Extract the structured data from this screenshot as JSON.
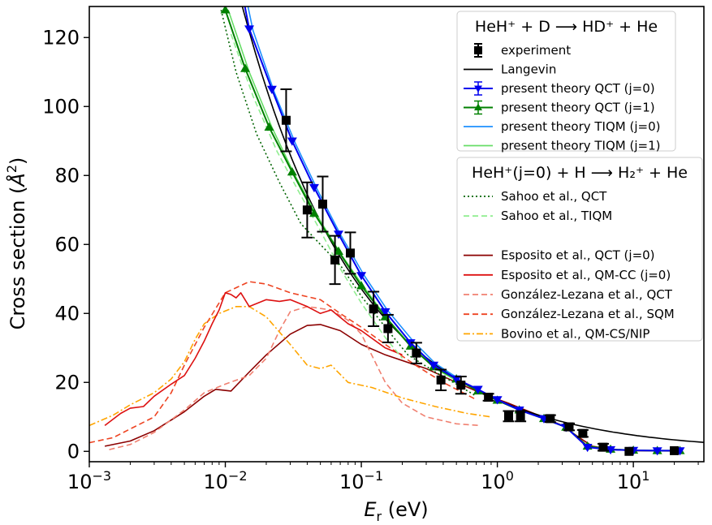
{
  "chart_data": {
    "type": "line",
    "xscale": "log",
    "xlim": [
      0.001,
      33
    ],
    "ylim": [
      -3,
      129
    ],
    "xlabel": "E_r (eV)",
    "xlabel_main": "E",
    "xlabel_sub": "r",
    "xlabel_unit": " (eV)",
    "ylabel": "Cross section (Å²)",
    "ylabel_main": "Cross section (",
    "ylabel_symbol": "Å",
    "ylabel_sup": "2",
    "ylabel_close": ")",
    "grid": false,
    "x_ticks": [
      {
        "value": 0.001,
        "base": "10",
        "exp": "−3"
      },
      {
        "value": 0.01,
        "base": "10",
        "exp": "−2"
      },
      {
        "value": 0.1,
        "base": "10",
        "exp": "−1"
      },
      {
        "value": 1,
        "base": "10",
        "exp": "0"
      },
      {
        "value": 10,
        "base": "10",
        "exp": "1"
      }
    ],
    "y_ticks": [
      0,
      20,
      40,
      60,
      80,
      100,
      120
    ],
    "legend_placement": "top-right",
    "legends": [
      {
        "title": "HeH⁺ + D ⟶ HD⁺ + He",
        "entries": [
          "experiment",
          "langevin",
          "qct_j0",
          "qct_j1",
          "tiqm_j0",
          "tiqm_j1"
        ]
      },
      {
        "title": "HeH⁺(j=0) + H ⟶ H₂⁺ + He",
        "entries": [
          "sahoo_qct",
          "sahoo_tiqm",
          null,
          "esposito_qct",
          "esposito_qmcc",
          "gonzalez_qct",
          "gonzalez_sqm",
          "bovino"
        ]
      }
    ],
    "series": [
      {
        "id": "experiment",
        "name": "experiment",
        "color": "#000000",
        "style": "markers",
        "marker": "square",
        "points": [
          [
            0.028,
            96,
            9
          ],
          [
            0.04,
            70,
            8
          ],
          [
            0.052,
            71.7,
            8
          ],
          [
            0.064,
            55.5,
            7
          ],
          [
            0.083,
            57.5,
            6
          ],
          [
            0.123,
            41.3,
            5
          ],
          [
            0.157,
            35.6,
            4
          ],
          [
            0.254,
            28.5,
            3
          ],
          [
            0.385,
            20.7,
            3
          ],
          [
            0.54,
            19.2,
            2.5
          ],
          [
            0.86,
            15.7,
            1
          ],
          [
            1.21,
            10.2,
            1.5
          ],
          [
            1.48,
            10.2,
            1.5
          ],
          [
            2.45,
            9.5,
            1
          ],
          [
            3.37,
            7.1,
            1
          ],
          [
            4.25,
            5.2,
            1
          ],
          [
            6.0,
            1.2,
            1
          ],
          [
            9.3,
            0,
            0.5
          ],
          [
            20,
            0.2,
            0.5
          ]
        ]
      },
      {
        "id": "langevin",
        "name": "Langevin",
        "color": "#000000",
        "style": "solid",
        "formula": "langevin",
        "coef": 14.9,
        "x_range": [
          0.009,
          33
        ]
      },
      {
        "id": "qct_j0",
        "name": "present theory QCT (j=0)",
        "color": "#0000ee",
        "style": "solid-markers",
        "marker": "triangle-down",
        "points": [
          [
            0.012,
            142
          ],
          [
            0.015,
            122.5
          ],
          [
            0.022,
            105
          ],
          [
            0.031,
            90
          ],
          [
            0.045,
            76.5
          ],
          [
            0.068,
            63
          ],
          [
            0.1,
            51
          ],
          [
            0.15,
            40.5
          ],
          [
            0.23,
            31.5
          ],
          [
            0.34,
            25
          ],
          [
            0.5,
            21
          ],
          [
            0.72,
            18
          ],
          [
            1.0,
            15
          ],
          [
            1.45,
            12
          ],
          [
            2.2,
            9.5
          ],
          [
            3.2,
            7
          ],
          [
            4.6,
            1.2
          ],
          [
            6.8,
            0.5
          ],
          [
            10,
            0.3
          ],
          [
            15,
            0.2
          ],
          [
            22,
            0.2
          ]
        ]
      },
      {
        "id": "qct_j1",
        "name": "present theory QCT (j=1)",
        "color": "#008000",
        "style": "solid-markers",
        "marker": "triangle-up",
        "points": [
          [
            0.01,
            128
          ],
          [
            0.014,
            111
          ],
          [
            0.021,
            94
          ],
          [
            0.031,
            81
          ],
          [
            0.045,
            69
          ],
          [
            0.068,
            58
          ],
          [
            0.1,
            48
          ],
          [
            0.15,
            39
          ],
          [
            0.23,
            30.5
          ],
          [
            0.34,
            24.5
          ],
          [
            0.5,
            21
          ],
          [
            0.72,
            17.5
          ],
          [
            1.0,
            14.8
          ],
          [
            1.45,
            12
          ],
          [
            2.2,
            9.5
          ],
          [
            3.2,
            7
          ],
          [
            4.6,
            1.5
          ],
          [
            6.8,
            0.6
          ],
          [
            10,
            0.3
          ],
          [
            15,
            0.2
          ],
          [
            22,
            0.2
          ]
        ]
      },
      {
        "id": "tiqm_j0",
        "name": "present theory TIQM (j=0)",
        "color": "#1e90ff",
        "style": "solid",
        "points": [
          [
            0.0125,
            142
          ],
          [
            0.016,
            122
          ],
          [
            0.023,
            104
          ],
          [
            0.033,
            89
          ],
          [
            0.048,
            75.5
          ],
          [
            0.07,
            63
          ],
          [
            0.105,
            51
          ],
          [
            0.155,
            41
          ],
          [
            0.24,
            32
          ],
          [
            0.35,
            25.5
          ],
          [
            0.5,
            21.5
          ]
        ]
      },
      {
        "id": "tiqm_j1",
        "name": "present theory TIQM (j=1)",
        "color": "#66dd66",
        "style": "solid",
        "points": [
          [
            0.0105,
            128
          ],
          [
            0.015,
            110
          ],
          [
            0.022,
            94
          ],
          [
            0.032,
            80.5
          ],
          [
            0.047,
            68.5
          ],
          [
            0.07,
            57.5
          ],
          [
            0.105,
            47.5
          ],
          [
            0.155,
            38.5
          ],
          [
            0.24,
            30
          ],
          [
            0.35,
            24
          ],
          [
            0.5,
            20.5
          ]
        ]
      },
      {
        "id": "sahoo_qct",
        "name": "Sahoo et al., QCT",
        "color": "#006400",
        "style": "dotted",
        "points": [
          [
            0.0093,
            128
          ],
          [
            0.012,
            110
          ],
          [
            0.017,
            92
          ],
          [
            0.025,
            78
          ],
          [
            0.036,
            66
          ],
          [
            0.05,
            60
          ],
          [
            0.07,
            54
          ],
          [
            0.1,
            45
          ],
          [
            0.15,
            36
          ],
          [
            0.22,
            28
          ],
          [
            0.35,
            23
          ],
          [
            0.5,
            19.5
          ],
          [
            0.7,
            16
          ]
        ]
      },
      {
        "id": "sahoo_tiqm",
        "name": "Sahoo et al., TIQM",
        "color": "#90ee90",
        "style": "dashed",
        "points": [
          [
            0.011,
            121
          ],
          [
            0.016,
            103
          ],
          [
            0.024,
            87
          ],
          [
            0.035,
            75
          ],
          [
            0.05,
            64
          ],
          [
            0.07,
            53
          ],
          [
            0.1,
            43
          ],
          [
            0.15,
            33
          ],
          [
            0.2,
            27
          ]
        ]
      },
      {
        "id": "esposito_qct",
        "name": "Esposito et al., QCT (j=0)",
        "color": "#8b0000",
        "style": "solid",
        "points": [
          [
            0.0013,
            1.5
          ],
          [
            0.002,
            3
          ],
          [
            0.003,
            6
          ],
          [
            0.005,
            11.5
          ],
          [
            0.007,
            16
          ],
          [
            0.0085,
            18
          ],
          [
            0.011,
            17.5
          ],
          [
            0.015,
            23
          ],
          [
            0.02,
            28
          ],
          [
            0.03,
            34
          ],
          [
            0.04,
            36.5
          ],
          [
            0.05,
            36.8
          ],
          [
            0.07,
            35
          ],
          [
            0.1,
            31
          ],
          [
            0.15,
            28
          ],
          [
            0.3,
            24
          ],
          [
            0.5,
            20
          ],
          [
            0.8,
            16.5
          ],
          [
            1.2,
            14
          ],
          [
            2,
            10.5
          ],
          [
            3,
            7.5
          ],
          [
            4,
            4
          ],
          [
            5,
            1.5
          ],
          [
            7,
            0.5
          ],
          [
            10,
            0.2
          ],
          [
            20,
            0.1
          ]
        ]
      },
      {
        "id": "esposito_qmcc",
        "name": "Esposito et al., QM-CC (j=0)",
        "color": "#dd1111",
        "style": "solid",
        "points": [
          [
            0.0013,
            7.5
          ],
          [
            0.0017,
            11
          ],
          [
            0.002,
            12.5
          ],
          [
            0.0025,
            13
          ],
          [
            0.003,
            16
          ],
          [
            0.004,
            19.5
          ],
          [
            0.005,
            22
          ],
          [
            0.006,
            27
          ],
          [
            0.007,
            32
          ],
          [
            0.008,
            37
          ],
          [
            0.009,
            41
          ],
          [
            0.01,
            46
          ],
          [
            0.011,
            45.5
          ],
          [
            0.012,
            44.5
          ],
          [
            0.013,
            46
          ],
          [
            0.015,
            42
          ],
          [
            0.02,
            44
          ],
          [
            0.025,
            43.5
          ],
          [
            0.03,
            44
          ],
          [
            0.04,
            42
          ],
          [
            0.05,
            40
          ],
          [
            0.06,
            41
          ],
          [
            0.08,
            37
          ],
          [
            0.1,
            35
          ],
          [
            0.15,
            30
          ],
          [
            0.2,
            28
          ]
        ]
      },
      {
        "id": "gonzalez_qct",
        "name": "González-Lezana et al., QCT",
        "color": "#f08070",
        "style": "dashed",
        "points": [
          [
            0.0014,
            0.5
          ],
          [
            0.002,
            2
          ],
          [
            0.003,
            5.5
          ],
          [
            0.005,
            12
          ],
          [
            0.007,
            17
          ],
          [
            0.01,
            19.5
          ],
          [
            0.015,
            22
          ],
          [
            0.02,
            27
          ],
          [
            0.025,
            35
          ],
          [
            0.03,
            40.5
          ],
          [
            0.04,
            42
          ],
          [
            0.06,
            41
          ],
          [
            0.08,
            38
          ],
          [
            0.1,
            34
          ],
          [
            0.15,
            20
          ],
          [
            0.2,
            14
          ],
          [
            0.3,
            10
          ],
          [
            0.5,
            8
          ],
          [
            0.75,
            7.5
          ]
        ]
      },
      {
        "id": "gonzalez_sqm",
        "name": "González-Lezana et al., SQM",
        "color": "#ee4422",
        "style": "dashed",
        "points": [
          [
            0.001,
            2.5
          ],
          [
            0.0015,
            4
          ],
          [
            0.002,
            6.5
          ],
          [
            0.003,
            10
          ],
          [
            0.004,
            17
          ],
          [
            0.005,
            25
          ],
          [
            0.007,
            36
          ],
          [
            0.01,
            46
          ],
          [
            0.015,
            49.2
          ],
          [
            0.02,
            48.5
          ],
          [
            0.03,
            46
          ],
          [
            0.05,
            44
          ],
          [
            0.07,
            40
          ],
          [
            0.1,
            36
          ],
          [
            0.15,
            31
          ],
          [
            0.25,
            25
          ],
          [
            0.4,
            20
          ],
          [
            0.7,
            15
          ]
        ]
      },
      {
        "id": "bovino",
        "name": "Bovino et al., QM-CS/NIP",
        "color": "#ffa500",
        "style": "dashdot",
        "points": [
          [
            0.001,
            7.5
          ],
          [
            0.0015,
            10.5
          ],
          [
            0.002,
            13.5
          ],
          [
            0.003,
            17
          ],
          [
            0.004,
            21
          ],
          [
            0.005,
            26
          ],
          [
            0.006,
            32.5
          ],
          [
            0.007,
            37
          ],
          [
            0.009,
            40
          ],
          [
            0.012,
            42
          ],
          [
            0.015,
            42
          ],
          [
            0.02,
            39
          ],
          [
            0.03,
            31
          ],
          [
            0.04,
            25
          ],
          [
            0.05,
            24
          ],
          [
            0.06,
            25
          ],
          [
            0.08,
            20
          ],
          [
            0.12,
            18.5
          ],
          [
            0.2,
            15.5
          ],
          [
            0.35,
            13
          ],
          [
            0.6,
            11
          ],
          [
            0.9,
            10
          ]
        ]
      }
    ]
  }
}
